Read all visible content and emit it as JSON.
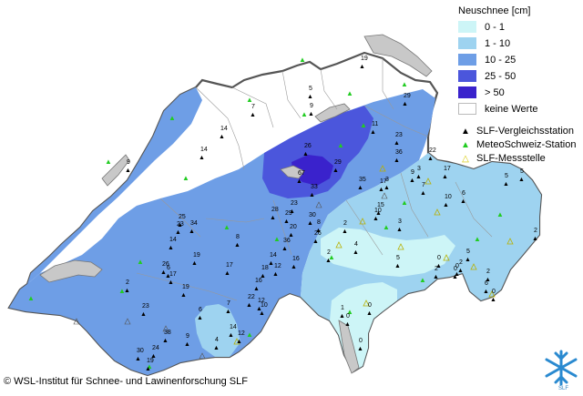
{
  "legend": {
    "title": "Neuschnee [cm]",
    "classes": [
      {
        "label": "0 - 1",
        "color": "#cdf5f7"
      },
      {
        "label": "1 - 10",
        "color": "#9ed3f0"
      },
      {
        "label": "10 - 25",
        "color": "#6e9ee6"
      },
      {
        "label": "25 - 50",
        "color": "#4b56dc"
      },
      {
        "label": "> 50",
        "color": "#3a22cc"
      },
      {
        "label": "keine Werte",
        "color": "#ffffff"
      }
    ],
    "stations": [
      {
        "label": "SLF-Vergleichsstation",
        "symbol": "▲",
        "color": "#000000"
      },
      {
        "label": "MeteoSchweiz-Station",
        "symbol": "▲",
        "color": "#22cc22"
      },
      {
        "label": "SLF-Messstelle",
        "symbol": "△",
        "color": "#e8e000"
      }
    ]
  },
  "map_labels": [
    {
      "text": "19"
    },
    {
      "text": "5"
    },
    {
      "text": "29"
    },
    {
      "text": "7"
    },
    {
      "text": "14"
    },
    {
      "text": "9"
    },
    {
      "text": "14"
    },
    {
      "text": "9"
    },
    {
      "text": "11"
    },
    {
      "text": "23"
    },
    {
      "text": "22"
    },
    {
      "text": "26"
    },
    {
      "text": "67"
    },
    {
      "text": "29"
    },
    {
      "text": "35"
    },
    {
      "text": "36"
    },
    {
      "text": "3"
    },
    {
      "text": "33"
    },
    {
      "text": "17"
    },
    {
      "text": "17"
    },
    {
      "text": "5"
    },
    {
      "text": "3"
    },
    {
      "text": "15"
    },
    {
      "text": "10"
    },
    {
      "text": "9"
    },
    {
      "text": "23"
    },
    {
      "text": "28"
    },
    {
      "text": "29"
    },
    {
      "text": "30"
    },
    {
      "text": "25"
    },
    {
      "text": "34"
    },
    {
      "text": "8"
    },
    {
      "text": "7"
    },
    {
      "text": "20"
    },
    {
      "text": "26"
    },
    {
      "text": "6"
    },
    {
      "text": "2"
    },
    {
      "text": "3"
    },
    {
      "text": "14"
    },
    {
      "text": "23"
    },
    {
      "text": "10"
    },
    {
      "text": "8"
    },
    {
      "text": "4"
    },
    {
      "text": "19"
    },
    {
      "text": "14"
    },
    {
      "text": "36"
    },
    {
      "text": "5"
    },
    {
      "text": "6"
    },
    {
      "text": "17"
    },
    {
      "text": "26"
    },
    {
      "text": "17"
    },
    {
      "text": "18"
    },
    {
      "text": "16"
    },
    {
      "text": "12"
    },
    {
      "text": "2"
    },
    {
      "text": "16"
    },
    {
      "text": "5"
    },
    {
      "text": "2"
    },
    {
      "text": "0"
    },
    {
      "text": "0"
    },
    {
      "text": "19"
    },
    {
      "text": "2"
    },
    {
      "text": "0"
    },
    {
      "text": "7"
    },
    {
      "text": "22"
    },
    {
      "text": "2"
    },
    {
      "text": "23"
    },
    {
      "text": "6"
    },
    {
      "text": "12"
    },
    {
      "text": "10"
    },
    {
      "text": "1"
    },
    {
      "text": "0"
    },
    {
      "text": "0"
    },
    {
      "text": "38"
    },
    {
      "text": "9"
    },
    {
      "text": "4"
    },
    {
      "text": "14"
    },
    {
      "text": "12"
    },
    {
      "text": "30"
    },
    {
      "text": "24"
    },
    {
      "text": "19"
    },
    {
      "text": "0"
    },
    {
      "text": "6"
    },
    {
      "text": "0"
    },
    {
      "text": "2"
    },
    {
      "text": "2"
    },
    {
      "text": "5"
    }
  ],
  "copyright": "© WSL-Institut für Schnee- und Lawinenforschung SLF",
  "logo_text": "SLF"
}
